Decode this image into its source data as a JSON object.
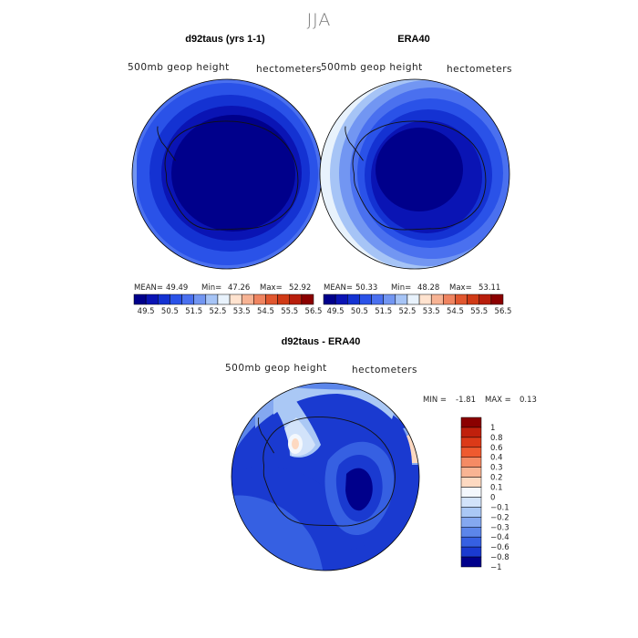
{
  "figure": {
    "title": "JJA",
    "colors": [
      "#00008b",
      "#0a14b4",
      "#1432d2",
      "#2a52e8",
      "#4a70ef",
      "#7296f2",
      "#a6c4f6",
      "#e8f2fc",
      "#ffe3cf",
      "#f7b394",
      "#ef8460",
      "#e1572f",
      "#d03a16",
      "#b81e0c",
      "#8b0000"
    ]
  },
  "chart_data": [
    {
      "type": "contour-map",
      "title": "d92taus (yrs 1-1)",
      "left_label": "500mb geop height",
      "right_label": "hectometers",
      "stats": {
        "mean_label": "MEAN=",
        "mean": "49.49",
        "min_label": "Min=",
        "min": "47.26",
        "max_label": "Max=",
        "max": "52.92"
      },
      "colorbar_ticks": [
        "49.5",
        "50.5",
        "51.5",
        "52.5",
        "53.5",
        "54.5",
        "55.5",
        "56.5"
      ]
    },
    {
      "type": "contour-map",
      "title": "ERA40",
      "left_label": "500mb geop height",
      "right_label": "hectometers",
      "stats": {
        "mean_label": "MEAN=",
        "mean": "50.33",
        "min_label": "Min=",
        "min": "48.28",
        "max_label": "Max=",
        "max": "53.11"
      },
      "colorbar_ticks": [
        "49.5",
        "50.5",
        "51.5",
        "52.5",
        "53.5",
        "54.5",
        "55.5",
        "56.5"
      ]
    },
    {
      "type": "contour-map",
      "title": "d92taus - ERA40",
      "left_label": "500mb geop height",
      "right_label": "hectometers",
      "stats": {
        "min_label": "MIN =",
        "min": "-1.81",
        "max_label": "MAX =",
        "max": "0.13"
      },
      "colorbar_ticks": [
        "1",
        "0.8",
        "0.6",
        "0.4",
        "0.3",
        "0.2",
        "0.1",
        "0",
        "−0.1",
        "−0.2",
        "−0.3",
        "−0.4",
        "−0.6",
        "−0.8",
        "−1"
      ],
      "colorbar_colors": [
        "#8b0000",
        "#c0200c",
        "#dc3a18",
        "#ef5a2f",
        "#f58b64",
        "#f9b493",
        "#fdd9c1",
        "#f4f8fd",
        "#d2e3fa",
        "#aac8f5",
        "#84a8f0",
        "#5c86ea",
        "#3660e2",
        "#1a3ad0",
        "#00008b"
      ]
    }
  ]
}
